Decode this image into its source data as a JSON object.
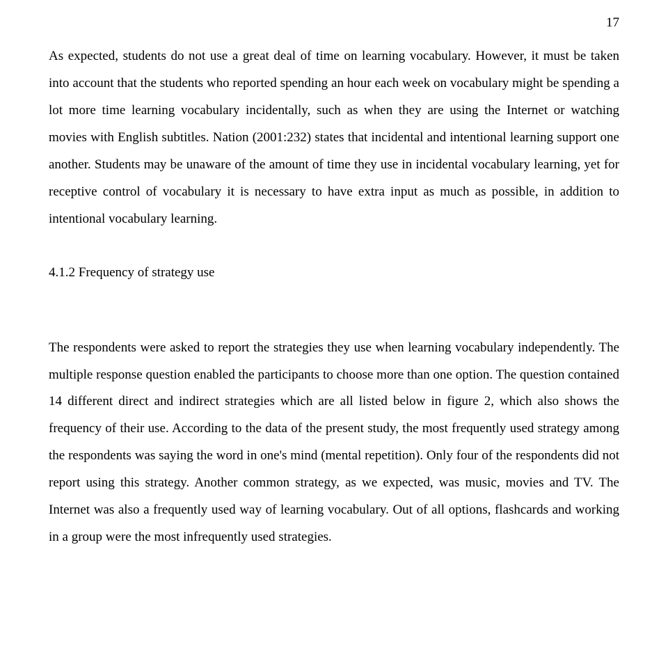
{
  "pageNumber": "17",
  "paragraph1": "As expected, students do not use a great deal of time on learning vocabulary. However, it must be taken into account that the students who reported spending an hour each week on vocabulary might be spending a lot more time learning vocabulary incidentally, such as when they are using the Internet or watching movies with English subtitles. Nation (2001:232) states that incidental and intentional learning support one another. Students may be unaware of the amount of time they use in incidental vocabulary learning, yet for receptive control of vocabulary it is necessary to have extra input as much as possible, in addition to intentional vocabulary learning.",
  "sectionHeading": "4.1.2 Frequency of strategy use",
  "paragraph2": "The respondents were asked to report the strategies they use when learning vocabulary independently. The multiple response question enabled the participants to choose more than one option. The question contained 14 different direct and indirect strategies which are all listed below in figure 2, which also shows the frequency of their use. According to the data of the present study, the most frequently used strategy among the respondents was saying the word in one's mind (mental repetition). Only four of the respondents did not report using this strategy. Another common strategy, as we expected, was music, movies and TV. The Internet was also a frequently used way of learning vocabulary. Out of all options, flashcards and working in a group were the most infrequently used strategies."
}
